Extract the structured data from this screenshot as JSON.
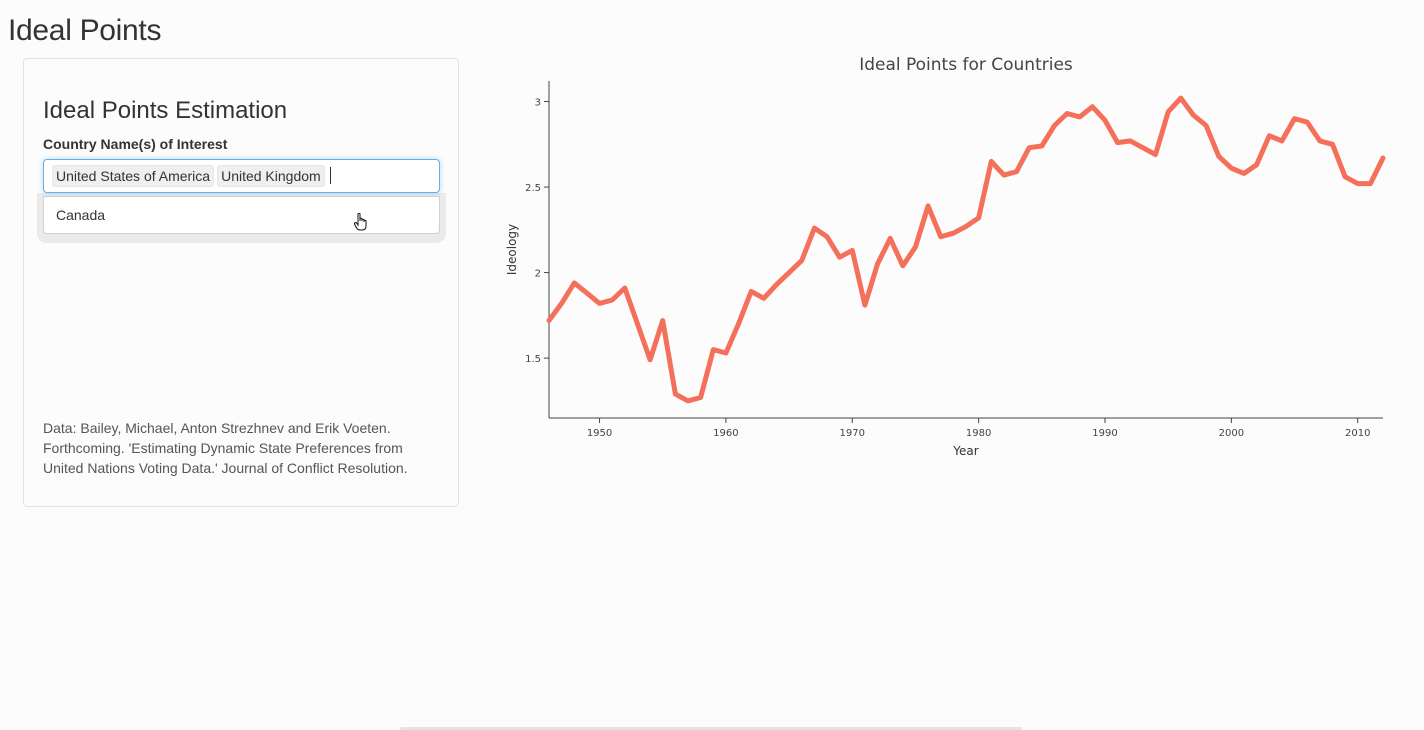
{
  "page": {
    "title": "Ideal Points"
  },
  "sidebar": {
    "heading": "Ideal Points Estimation",
    "label": "Country Name(s) of Interest",
    "selected": [
      "United States of America",
      "United Kingdom"
    ],
    "dropdown_options": [
      "Canada"
    ],
    "citation": "Data: Bailey, Michael, Anton Strezhnev and Erik Voeten. Forthcoming. 'Estimating Dynamic State Preferences from United Nations Voting Data.' Journal of Conflict Resolution."
  },
  "colors": {
    "line": "#f4705a",
    "focus_border": "#66afe9"
  },
  "chart_data": {
    "type": "line",
    "title": "Ideal Points for Countries",
    "xlabel": "Year",
    "ylabel": "Ideology",
    "xlim": [
      1946,
      2012
    ],
    "ylim": [
      1.15,
      3.12
    ],
    "xticks": [
      1950,
      1960,
      1970,
      1980,
      1990,
      2000,
      2010
    ],
    "yticks": [
      1.5,
      2,
      2.5,
      3
    ],
    "ytick_labels": [
      "1.5",
      "2",
      "2.5",
      "3"
    ],
    "grid": false,
    "legend": "none",
    "series": [
      {
        "x": [
          1946,
          1947,
          1948,
          1949,
          1950,
          1951,
          1952,
          1953,
          1954,
          1955,
          1956,
          1957,
          1958,
          1959,
          1960,
          1961,
          1962,
          1963,
          1964,
          1965,
          1966,
          1967,
          1968,
          1969,
          1970,
          1971,
          1972,
          1973,
          1974,
          1975,
          1976,
          1977,
          1978,
          1979,
          1980,
          1981,
          1982,
          1983,
          1984,
          1985,
          1986,
          1987,
          1988,
          1989,
          1990,
          1991,
          1992,
          1993,
          1994,
          1995,
          1996,
          1997,
          1998,
          1999,
          2000,
          2001,
          2002,
          2003,
          2004,
          2005,
          2006,
          2007,
          2008,
          2009,
          2010,
          2011,
          2012
        ],
        "y": [
          1.72,
          1.82,
          1.94,
          1.88,
          1.82,
          1.84,
          1.91,
          1.7,
          1.49,
          1.72,
          1.29,
          1.25,
          1.27,
          1.55,
          1.53,
          1.7,
          1.89,
          1.85,
          1.93,
          2.0,
          2.07,
          2.26,
          2.21,
          2.09,
          2.13,
          1.81,
          2.05,
          2.2,
          2.04,
          2.15,
          2.39,
          2.21,
          2.23,
          2.27,
          2.32,
          2.65,
          2.57,
          2.59,
          2.73,
          2.74,
          2.86,
          2.93,
          2.91,
          2.97,
          2.89,
          2.76,
          2.77,
          2.73,
          2.69,
          2.94,
          3.02,
          2.92,
          2.86,
          2.68,
          2.61,
          2.58,
          2.63,
          2.8,
          2.77,
          2.9,
          2.88,
          2.77,
          2.75,
          2.56,
          2.52,
          2.52,
          2.67
        ]
      }
    ]
  }
}
